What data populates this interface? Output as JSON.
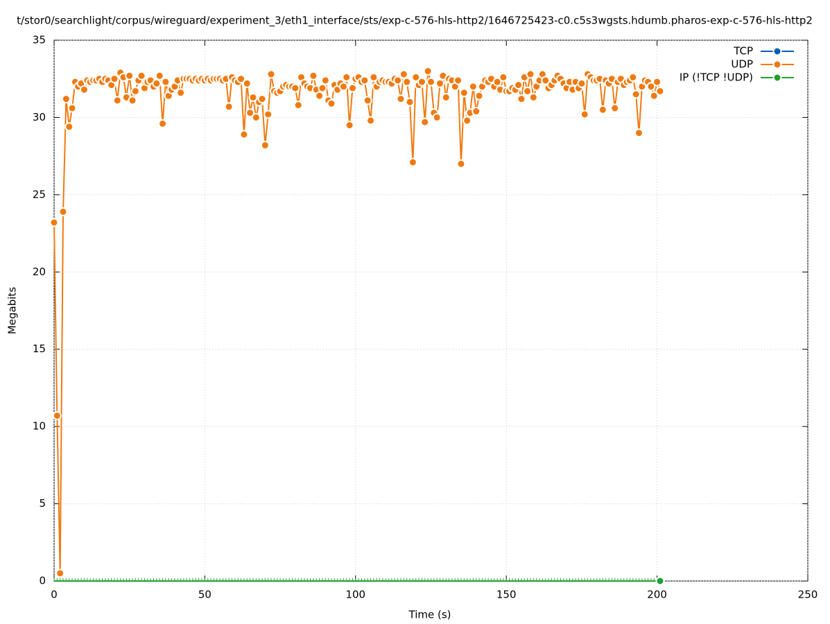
{
  "chart_data": {
    "type": "line",
    "title": "t/stor0/searchlight/corpus/wireguard/experiment_3/eth1_interface/sts/exp-c-576-hls-http2/1646725423-c0.c5s3wgsts.hdumb.pharos-exp-c-576-hls-http2",
    "xlabel": "Time (s)",
    "ylabel": "Megabits",
    "xlim": [
      0,
      250
    ],
    "xticks": [
      0,
      50,
      100,
      150,
      200,
      250
    ],
    "ylim": [
      0,
      35
    ],
    "yticks": [
      0,
      5,
      10,
      15,
      20,
      25,
      30,
      35
    ],
    "grid": true,
    "legend": "top-right",
    "x": [
      0,
      1,
      2,
      3,
      4,
      5,
      6,
      7,
      8,
      9,
      10,
      11,
      12,
      13,
      14,
      15,
      16,
      17,
      18,
      19,
      20,
      21,
      22,
      23,
      24,
      25,
      26,
      27,
      28,
      29,
      30,
      31,
      32,
      33,
      34,
      35,
      36,
      37,
      38,
      39,
      40,
      41,
      42,
      43,
      44,
      45,
      46,
      47,
      48,
      49,
      50,
      51,
      52,
      53,
      54,
      55,
      56,
      57,
      58,
      59,
      60,
      61,
      62,
      63,
      64,
      65,
      66,
      67,
      68,
      69,
      70,
      71,
      72,
      73,
      74,
      75,
      76,
      77,
      78,
      79,
      80,
      81,
      82,
      83,
      84,
      85,
      86,
      87,
      88,
      89,
      90,
      91,
      92,
      93,
      94,
      95,
      96,
      97,
      98,
      99,
      100,
      101,
      102,
      103,
      104,
      105,
      106,
      107,
      108,
      109,
      110,
      111,
      112,
      113,
      114,
      115,
      116,
      117,
      118,
      119,
      120,
      121,
      122,
      123,
      124,
      125,
      126,
      127,
      128,
      129,
      130,
      131,
      132,
      133,
      134,
      135,
      136,
      137,
      138,
      139,
      140,
      141,
      142,
      143,
      144,
      145,
      146,
      147,
      148,
      149,
      150,
      151,
      152,
      153,
      154,
      155,
      156,
      157,
      158,
      159,
      160,
      161,
      162,
      163,
      164,
      165,
      166,
      167,
      168,
      169,
      170,
      171,
      172,
      173,
      174,
      175,
      176,
      177,
      178,
      179,
      180,
      181,
      182,
      183,
      184,
      185,
      186,
      187,
      188,
      189,
      190,
      191,
      192,
      193,
      194,
      195,
      196,
      197,
      198,
      199,
      200,
      201
    ],
    "series": [
      {
        "name": "TCP",
        "color": "#0060ad"
      },
      {
        "name": "UDP",
        "color": "#f07a10",
        "values": [
          23.2,
          10.7,
          0.5,
          23.9,
          31.2,
          29.4,
          30.6,
          32.3,
          32.0,
          32.2,
          31.8,
          32.4,
          32.3,
          32.4,
          32.4,
          32.5,
          32.3,
          32.5,
          32.4,
          32.1,
          32.5,
          31.1,
          32.9,
          32.6,
          31.3,
          32.7,
          31.1,
          31.7,
          32.4,
          32.7,
          31.9,
          32.3,
          32.4,
          32.0,
          32.2,
          32.7,
          29.6,
          32.3,
          31.4,
          31.8,
          32.0,
          32.4,
          31.6,
          32.5,
          32.5,
          32.5,
          32.4,
          32.5,
          32.4,
          32.5,
          32.4,
          32.5,
          32.4,
          32.5,
          32.5,
          32.5,
          32.4,
          32.5,
          30.7,
          32.6,
          32.4,
          32.3,
          32.5,
          28.9,
          32.2,
          30.3,
          31.3,
          30.0,
          31.0,
          31.2,
          28.2,
          30.2,
          32.8,
          31.7,
          31.6,
          31.7,
          32.0,
          32.1,
          32.0,
          32.0,
          31.9,
          30.8,
          32.6,
          32.2,
          32.0,
          31.9,
          32.7,
          31.8,
          31.4,
          31.9,
          32.4,
          31.1,
          30.9,
          32.1,
          31.8,
          32.2,
          32.0,
          32.6,
          29.5,
          31.9,
          32.5,
          32.6,
          32.3,
          32.4,
          31.1,
          29.8,
          32.6,
          32.0,
          32.3,
          32.4,
          32.3,
          32.3,
          32.2,
          32.5,
          32.4,
          31.2,
          32.8,
          32.3,
          31.0,
          27.1,
          32.6,
          32.1,
          32.3,
          29.7,
          33.0,
          32.3,
          30.3,
          30.0,
          32.2,
          32.7,
          31.3,
          32.5,
          32.4,
          32.0,
          32.4,
          27.0,
          31.6,
          29.8,
          30.3,
          32.0,
          30.4,
          31.4,
          32.0,
          32.4,
          32.3,
          32.5,
          32.0,
          32.3,
          31.8,
          32.6,
          31.7,
          31.7,
          31.9,
          31.8,
          32.1,
          31.2,
          32.6,
          31.7,
          32.8,
          31.3,
          32.0,
          32.4,
          32.8,
          32.4,
          31.9,
          32.1,
          32.4,
          32.7,
          32.5,
          32.2,
          31.9,
          32.3,
          31.8,
          32.3,
          31.9,
          32.2,
          30.2,
          32.8,
          32.6,
          32.4,
          32.4,
          32.5,
          30.5,
          32.4,
          32.2,
          32.5,
          30.6,
          32.3,
          32.5,
          32.1,
          32.3,
          32.4,
          32.6,
          31.5,
          29.0,
          32.0,
          32.4,
          32.3,
          32.0,
          31.4,
          32.3,
          31.7
        ]
      },
      {
        "name": "IP (!TCP  !UDP)",
        "color": "#20a030",
        "values": [
          0,
          0,
          0,
          0,
          0,
          0,
          0,
          0,
          0,
          0,
          0,
          0,
          0,
          0,
          0,
          0,
          0,
          0,
          0,
          0,
          0,
          0,
          0,
          0,
          0,
          0,
          0,
          0,
          0,
          0,
          0,
          0,
          0,
          0,
          0,
          0,
          0,
          0,
          0,
          0,
          0,
          0,
          0,
          0,
          0,
          0,
          0,
          0,
          0,
          0,
          0,
          0,
          0,
          0,
          0,
          0,
          0,
          0,
          0,
          0,
          0,
          0,
          0,
          0,
          0,
          0,
          0,
          0,
          0,
          0,
          0,
          0,
          0,
          0,
          0,
          0,
          0,
          0,
          0,
          0,
          0,
          0,
          0,
          0,
          0,
          0,
          0,
          0,
          0,
          0,
          0,
          0,
          0,
          0,
          0,
          0,
          0,
          0,
          0,
          0,
          0,
          0,
          0,
          0,
          0,
          0,
          0,
          0,
          0,
          0,
          0,
          0,
          0,
          0,
          0,
          0,
          0,
          0,
          0,
          0,
          0,
          0,
          0,
          0,
          0,
          0,
          0,
          0,
          0,
          0,
          0,
          0,
          0,
          0,
          0,
          0,
          0,
          0,
          0,
          0,
          0,
          0,
          0,
          0,
          0,
          0,
          0,
          0,
          0,
          0,
          0,
          0,
          0,
          0,
          0,
          0,
          0,
          0,
          0,
          0,
          0,
          0,
          0,
          0,
          0,
          0,
          0,
          0,
          0,
          0,
          0,
          0,
          0,
          0,
          0,
          0,
          0,
          0,
          0,
          0,
          0,
          0,
          0,
          0,
          0,
          0,
          0,
          0,
          0,
          0,
          0,
          0,
          0,
          0,
          0,
          0,
          0,
          0,
          0,
          0,
          0,
          0
        ]
      }
    ]
  }
}
